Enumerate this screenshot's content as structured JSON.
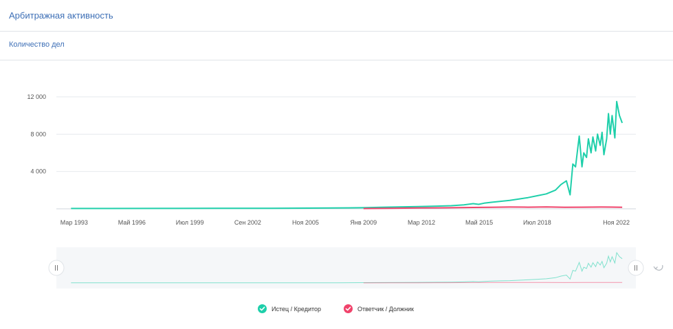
{
  "page": {
    "title": "Арбитражная активность",
    "subtitle": "Количество дел"
  },
  "colors": {
    "plaintiff": "#1ecfaa",
    "defendant": "#f0436b",
    "accent": "#3d6fb6"
  },
  "chart_data": {
    "type": "line",
    "title": "",
    "xlabel": "",
    "ylabel": "",
    "ylim": [
      0,
      12000
    ],
    "yticks": [
      {
        "value": 4000,
        "label": "4 000"
      },
      {
        "value": 8000,
        "label": "8 000"
      },
      {
        "value": 12000,
        "label": "12 000"
      }
    ],
    "xticks": [
      {
        "value": 1993.17,
        "label": "Мар 1993"
      },
      {
        "value": 1996.33,
        "label": "Май 1996"
      },
      {
        "value": 1999.5,
        "label": "Июл 1999"
      },
      {
        "value": 2002.67,
        "label": "Сен 2002"
      },
      {
        "value": 2005.83,
        "label": "Ноя 2005"
      },
      {
        "value": 2009.0,
        "label": "Янв 2009"
      },
      {
        "value": 2012.17,
        "label": "Мар 2012"
      },
      {
        "value": 2015.33,
        "label": "Май 2015"
      },
      {
        "value": 2018.5,
        "label": "Июл 2018"
      },
      {
        "value": 2022.83,
        "label": "Ноя 2022"
      }
    ],
    "xlim": [
      1992.2,
      2023.9
    ],
    "grid": true,
    "legend_position": "bottom-center",
    "series": [
      {
        "name": "Истец / Кредитор",
        "color": "#1ecfaa",
        "x": [
          1993.0,
          1995.0,
          1998.0,
          2001.0,
          2004.0,
          2006.0,
          2007.5,
          2009.0,
          2010.0,
          2011.0,
          2012.0,
          2013.0,
          2013.8,
          2014.5,
          2015.0,
          2015.3,
          2015.6,
          2016.0,
          2016.5,
          2017.0,
          2017.5,
          2018.0,
          2018.5,
          2019.0,
          2019.5,
          2019.8,
          2020.1,
          2020.3,
          2020.45,
          2020.6,
          2020.8,
          2020.95,
          2021.05,
          2021.2,
          2021.3,
          2021.45,
          2021.55,
          2021.7,
          2021.8,
          2021.95,
          2022.05,
          2022.15,
          2022.3,
          2022.4,
          2022.5,
          2022.6,
          2022.75,
          2022.85,
          2023.0,
          2023.15
        ],
        "values": [
          40,
          40,
          45,
          50,
          60,
          70,
          90,
          120,
          160,
          200,
          240,
          290,
          330,
          420,
          550,
          480,
          600,
          700,
          800,
          900,
          1050,
          1200,
          1400,
          1600,
          2000,
          2600,
          3000,
          1500,
          4800,
          4500,
          7800,
          4500,
          6000,
          5500,
          7500,
          6000,
          7700,
          6200,
          8000,
          6800,
          8200,
          5800,
          7500,
          10200,
          8000,
          10000,
          7600,
          11500,
          10000,
          9200
        ]
      },
      {
        "name": "Ответчик / Должник",
        "color": "#f0436b",
        "x": [
          2009.0,
          2010.5,
          2012.0,
          2013.5,
          2015.0,
          2016.0,
          2017.0,
          2018.0,
          2019.0,
          2020.0,
          2021.0,
          2022.0,
          2023.15
        ],
        "values": [
          30,
          60,
          90,
          110,
          150,
          170,
          190,
          180,
          200,
          160,
          180,
          190,
          170
        ]
      }
    ]
  },
  "navigator": {
    "reset_label": "↻"
  }
}
